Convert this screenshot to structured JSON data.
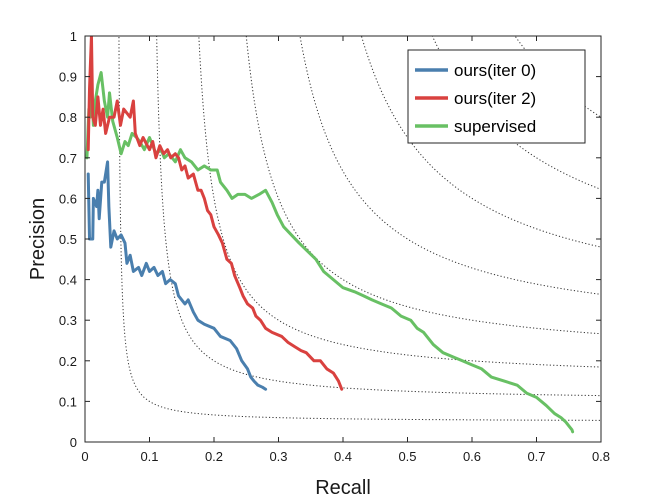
{
  "chart_data": {
    "type": "line",
    "xlabel": "Recall",
    "ylabel": "Precision",
    "xlim": [
      0,
      0.8
    ],
    "ylim": [
      0,
      1
    ],
    "xticks": [
      "0",
      "0.1",
      "0.2",
      "0.3",
      "0.4",
      "0.5",
      "0.6",
      "0.7",
      "0.8"
    ],
    "yticks": [
      "0",
      "0.1",
      "0.2",
      "0.3",
      "0.4",
      "0.5",
      "0.6",
      "0.7",
      "0.8",
      "0.9",
      "1"
    ],
    "grid": false,
    "legend_position": "top-right",
    "iso_f1_curves": [
      0.1,
      0.2,
      0.3,
      0.4,
      0.5,
      0.6,
      0.7,
      0.8,
      0.9
    ],
    "series": [
      {
        "name": "ours(iter 0)",
        "color": "#4a7fae",
        "points": [
          [
            0.005,
            0.66
          ],
          [
            0.007,
            0.5
          ],
          [
            0.012,
            0.5
          ],
          [
            0.013,
            0.6
          ],
          [
            0.018,
            0.58
          ],
          [
            0.02,
            0.62
          ],
          [
            0.022,
            0.55
          ],
          [
            0.026,
            0.64
          ],
          [
            0.03,
            0.64
          ],
          [
            0.035,
            0.69
          ],
          [
            0.037,
            0.58
          ],
          [
            0.04,
            0.48
          ],
          [
            0.045,
            0.52
          ],
          [
            0.05,
            0.5
          ],
          [
            0.056,
            0.51
          ],
          [
            0.062,
            0.49
          ],
          [
            0.065,
            0.44
          ],
          [
            0.07,
            0.46
          ],
          [
            0.075,
            0.42
          ],
          [
            0.083,
            0.43
          ],
          [
            0.088,
            0.41
          ],
          [
            0.095,
            0.44
          ],
          [
            0.1,
            0.42
          ],
          [
            0.107,
            0.43
          ],
          [
            0.113,
            0.41
          ],
          [
            0.12,
            0.42
          ],
          [
            0.125,
            0.39
          ],
          [
            0.132,
            0.4
          ],
          [
            0.14,
            0.39
          ],
          [
            0.145,
            0.36
          ],
          [
            0.155,
            0.34
          ],
          [
            0.16,
            0.35
          ],
          [
            0.168,
            0.32
          ],
          [
            0.175,
            0.3
          ],
          [
            0.185,
            0.29
          ],
          [
            0.2,
            0.28
          ],
          [
            0.21,
            0.26
          ],
          [
            0.225,
            0.25
          ],
          [
            0.235,
            0.23
          ],
          [
            0.243,
            0.2
          ],
          [
            0.252,
            0.18
          ],
          [
            0.257,
            0.16
          ],
          [
            0.262,
            0.15
          ],
          [
            0.268,
            0.14
          ],
          [
            0.275,
            0.135
          ],
          [
            0.28,
            0.13
          ]
        ]
      },
      {
        "name": "ours(iter 2)",
        "color": "#d9413f",
        "points": [
          [
            0.005,
            0.72
          ],
          [
            0.007,
            0.87
          ],
          [
            0.01,
            1.0
          ],
          [
            0.012,
            0.8
          ],
          [
            0.016,
            0.78
          ],
          [
            0.02,
            0.85
          ],
          [
            0.024,
            0.78
          ],
          [
            0.028,
            0.82
          ],
          [
            0.032,
            0.76
          ],
          [
            0.038,
            0.8
          ],
          [
            0.045,
            0.8
          ],
          [
            0.05,
            0.84
          ],
          [
            0.055,
            0.78
          ],
          [
            0.06,
            0.82
          ],
          [
            0.07,
            0.8
          ],
          [
            0.075,
            0.84
          ],
          [
            0.078,
            0.76
          ],
          [
            0.085,
            0.73
          ],
          [
            0.09,
            0.75
          ],
          [
            0.1,
            0.72
          ],
          [
            0.105,
            0.74
          ],
          [
            0.11,
            0.7
          ],
          [
            0.116,
            0.73
          ],
          [
            0.122,
            0.71
          ],
          [
            0.128,
            0.72
          ],
          [
            0.133,
            0.7
          ],
          [
            0.14,
            0.71
          ],
          [
            0.145,
            0.7
          ],
          [
            0.15,
            0.67
          ],
          [
            0.155,
            0.68
          ],
          [
            0.16,
            0.65
          ],
          [
            0.168,
            0.66
          ],
          [
            0.175,
            0.62
          ],
          [
            0.18,
            0.62
          ],
          [
            0.185,
            0.6
          ],
          [
            0.19,
            0.57
          ],
          [
            0.195,
            0.56
          ],
          [
            0.2,
            0.53
          ],
          [
            0.207,
            0.51
          ],
          [
            0.213,
            0.49
          ],
          [
            0.22,
            0.45
          ],
          [
            0.227,
            0.44
          ],
          [
            0.232,
            0.41
          ],
          [
            0.24,
            0.38
          ],
          [
            0.245,
            0.36
          ],
          [
            0.252,
            0.34
          ],
          [
            0.26,
            0.33
          ],
          [
            0.265,
            0.31
          ],
          [
            0.272,
            0.3
          ],
          [
            0.28,
            0.28
          ],
          [
            0.29,
            0.27
          ],
          [
            0.305,
            0.26
          ],
          [
            0.315,
            0.245
          ],
          [
            0.325,
            0.235
          ],
          [
            0.335,
            0.225
          ],
          [
            0.343,
            0.22
          ],
          [
            0.355,
            0.2
          ],
          [
            0.365,
            0.2
          ],
          [
            0.375,
            0.18
          ],
          [
            0.385,
            0.17
          ],
          [
            0.393,
            0.15
          ],
          [
            0.398,
            0.13
          ]
        ]
      },
      {
        "name": "supervised",
        "color": "#68c064",
        "points": [
          [
            0.003,
            0.7
          ],
          [
            0.006,
            0.82
          ],
          [
            0.008,
            0.8
          ],
          [
            0.01,
            0.88
          ],
          [
            0.013,
            0.78
          ],
          [
            0.016,
            0.84
          ],
          [
            0.02,
            0.88
          ],
          [
            0.025,
            0.91
          ],
          [
            0.03,
            0.84
          ],
          [
            0.035,
            0.8
          ],
          [
            0.038,
            0.86
          ],
          [
            0.043,
            0.79
          ],
          [
            0.05,
            0.75
          ],
          [
            0.056,
            0.71
          ],
          [
            0.062,
            0.74
          ],
          [
            0.067,
            0.73
          ],
          [
            0.073,
            0.76
          ],
          [
            0.08,
            0.75
          ],
          [
            0.085,
            0.74
          ],
          [
            0.092,
            0.72
          ],
          [
            0.1,
            0.75
          ],
          [
            0.105,
            0.73
          ],
          [
            0.11,
            0.71
          ],
          [
            0.118,
            0.72
          ],
          [
            0.123,
            0.7
          ],
          [
            0.13,
            0.71
          ],
          [
            0.14,
            0.69
          ],
          [
            0.148,
            0.72
          ],
          [
            0.155,
            0.7
          ],
          [
            0.165,
            0.69
          ],
          [
            0.175,
            0.67
          ],
          [
            0.185,
            0.68
          ],
          [
            0.195,
            0.67
          ],
          [
            0.205,
            0.67
          ],
          [
            0.21,
            0.64
          ],
          [
            0.22,
            0.62
          ],
          [
            0.228,
            0.6
          ],
          [
            0.237,
            0.61
          ],
          [
            0.248,
            0.61
          ],
          [
            0.258,
            0.6
          ],
          [
            0.27,
            0.61
          ],
          [
            0.28,
            0.62
          ],
          [
            0.29,
            0.59
          ],
          [
            0.298,
            0.56
          ],
          [
            0.308,
            0.53
          ],
          [
            0.32,
            0.51
          ],
          [
            0.332,
            0.49
          ],
          [
            0.345,
            0.47
          ],
          [
            0.358,
            0.45
          ],
          [
            0.37,
            0.42
          ],
          [
            0.385,
            0.4
          ],
          [
            0.4,
            0.38
          ],
          [
            0.418,
            0.37
          ],
          [
            0.432,
            0.36
          ],
          [
            0.445,
            0.35
          ],
          [
            0.46,
            0.34
          ],
          [
            0.475,
            0.33
          ],
          [
            0.49,
            0.31
          ],
          [
            0.505,
            0.3
          ],
          [
            0.515,
            0.28
          ],
          [
            0.525,
            0.27
          ],
          [
            0.54,
            0.24
          ],
          [
            0.555,
            0.22
          ],
          [
            0.57,
            0.21
          ],
          [
            0.585,
            0.2
          ],
          [
            0.6,
            0.19
          ],
          [
            0.615,
            0.18
          ],
          [
            0.63,
            0.16
          ],
          [
            0.65,
            0.15
          ],
          [
            0.67,
            0.14
          ],
          [
            0.685,
            0.12
          ],
          [
            0.7,
            0.11
          ],
          [
            0.715,
            0.09
          ],
          [
            0.728,
            0.07
          ],
          [
            0.738,
            0.06
          ],
          [
            0.745,
            0.05
          ],
          [
            0.75,
            0.04
          ],
          [
            0.755,
            0.03
          ],
          [
            0.756,
            0.025
          ]
        ]
      }
    ]
  }
}
